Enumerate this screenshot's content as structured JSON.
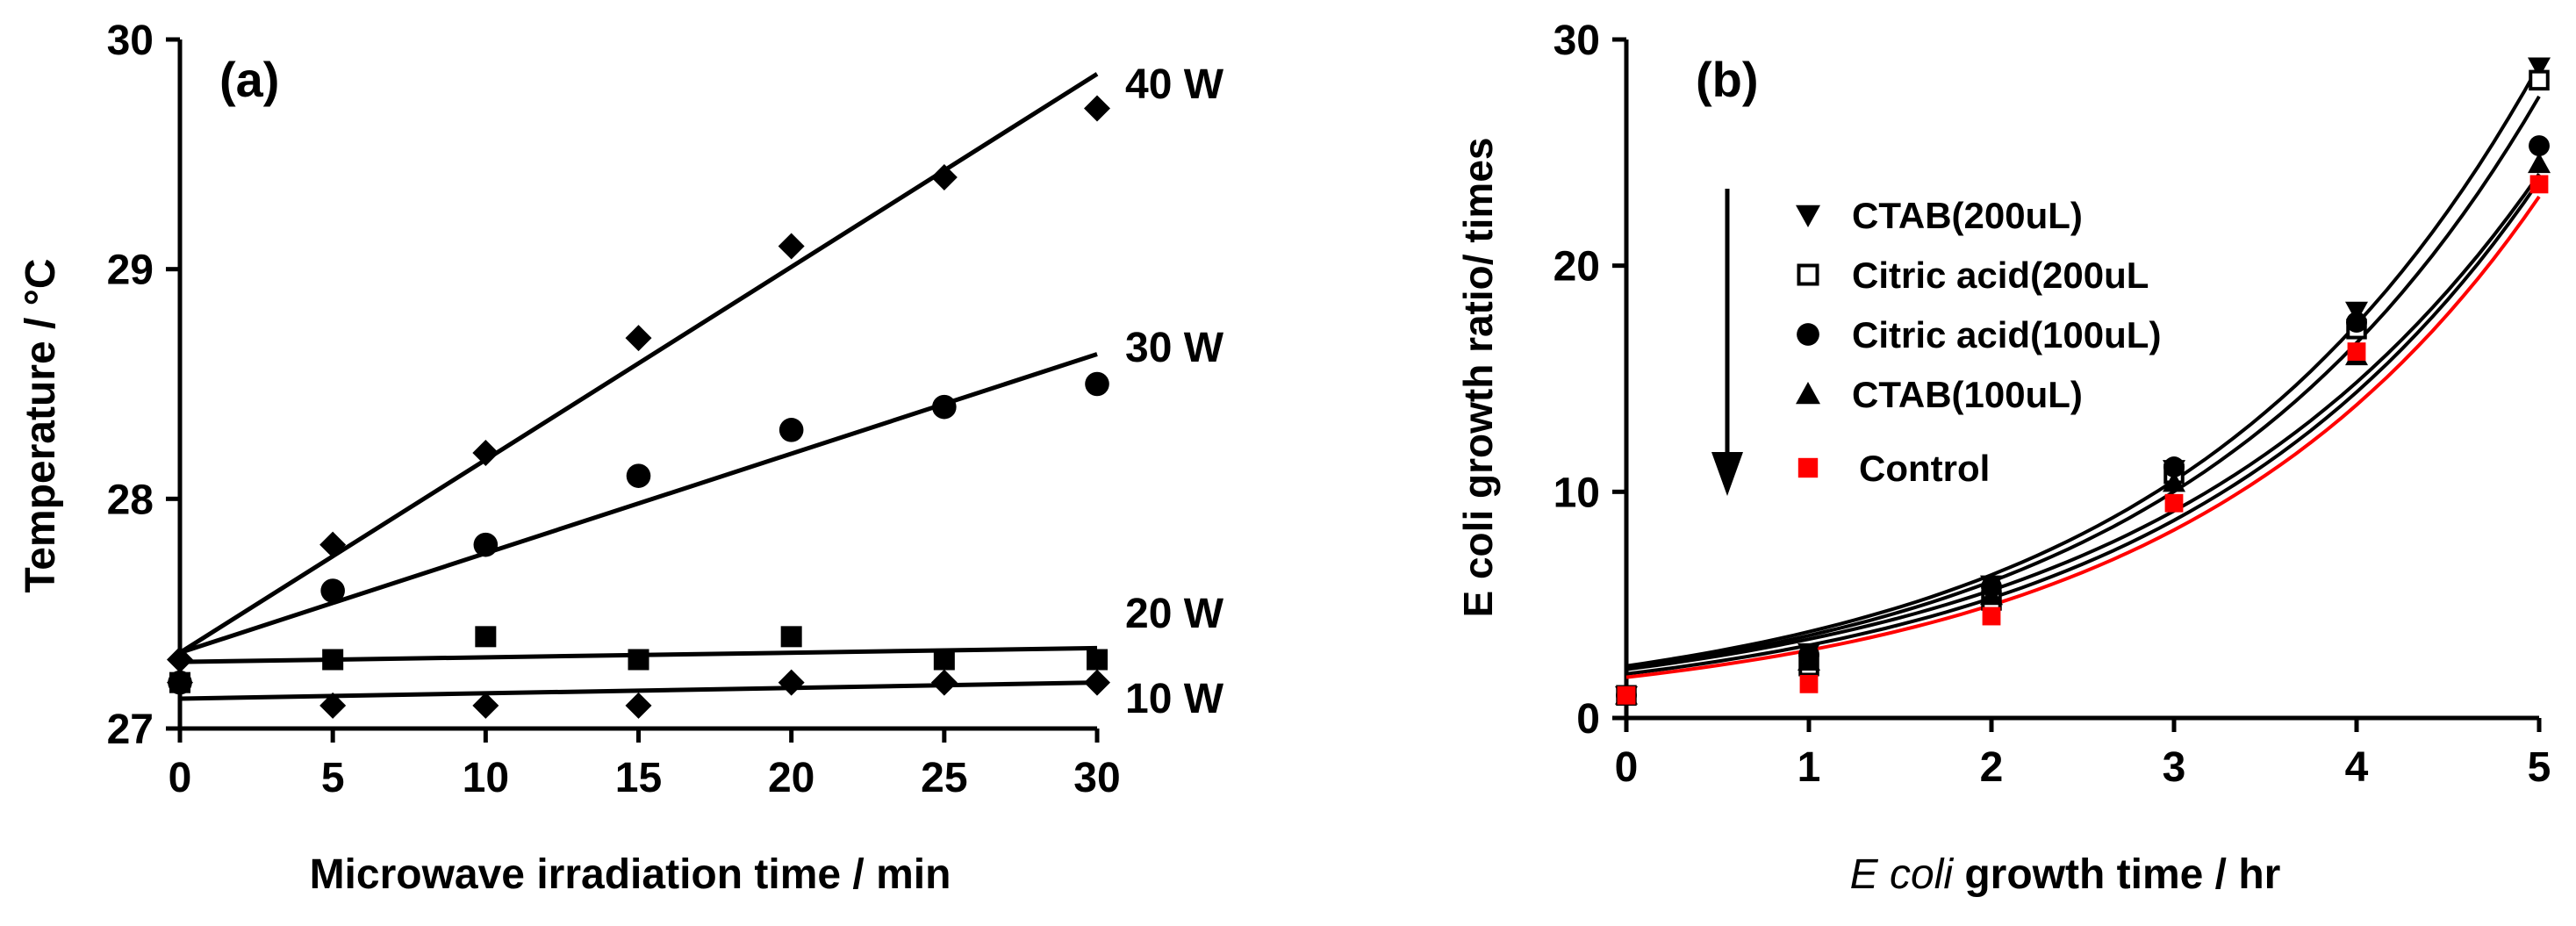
{
  "chart_data": [
    {
      "panel": "(a)",
      "type": "scatter",
      "xlabel": "Microwave irradiation time / min",
      "ylabel": "Temperature / °C",
      "xlim": [
        0,
        30
      ],
      "ylim": [
        27,
        30
      ],
      "xticks": [
        "0",
        "5",
        "10",
        "15",
        "20",
        "25",
        "30"
      ],
      "yticks": [
        "27",
        "28",
        "29",
        "30"
      ],
      "x": [
        0,
        5,
        10,
        15,
        20,
        25,
        30
      ],
      "series": [
        {
          "name": "40 W",
          "marker": "diamond",
          "values": [
            27.3,
            27.8,
            28.2,
            28.7,
            29.1,
            29.4,
            29.7
          ],
          "fit": [
            27.33,
            29.85
          ]
        },
        {
          "name": "30 W",
          "marker": "circle",
          "values": [
            27.2,
            27.6,
            27.8,
            28.1,
            28.3,
            28.4,
            28.5
          ],
          "fit": [
            27.33,
            28.63
          ]
        },
        {
          "name": "20 W",
          "marker": "square",
          "values": [
            27.2,
            27.3,
            27.4,
            27.3,
            27.4,
            27.3,
            27.3
          ],
          "fit": [
            27.29,
            27.35
          ]
        },
        {
          "name": "10 W",
          "marker": "diamond",
          "values": [
            27.2,
            27.1,
            27.1,
            27.1,
            27.2,
            27.2,
            27.2
          ],
          "fit": [
            27.13,
            27.2
          ]
        }
      ]
    },
    {
      "panel": "(b)",
      "type": "scatter",
      "xlabel_italic": "E coli",
      "xlabel_rest": " growth time / hr",
      "ylabel": "E coli growth ratio/ times",
      "xlim": [
        0,
        5
      ],
      "ylim": [
        0,
        30
      ],
      "xticks": [
        "0",
        "1",
        "2",
        "3",
        "4",
        "5"
      ],
      "yticks": [
        "0",
        "10",
        "20",
        "30"
      ],
      "x": [
        0,
        1,
        2,
        3,
        4,
        5
      ],
      "series": [
        {
          "name": "CTAB(200uL)",
          "marker": "triangle-down",
          "color": "#000000",
          "values": [
            1.0,
            2.9,
            5.9,
            11.0,
            18.0,
            28.8
          ],
          "fit": {
            "a": 2.3,
            "b": 0.506
          }
        },
        {
          "name": "Citric acid(200uL",
          "marker": "square-open",
          "color": "#000000",
          "values": [
            1.0,
            2.3,
            5.2,
            10.8,
            17.2,
            28.2
          ],
          "fit": {
            "a": 2.2,
            "b": 0.505
          }
        },
        {
          "name": "Citric acid(100uL)",
          "marker": "circle",
          "color": "#000000",
          "values": [
            1.0,
            2.8,
            5.8,
            11.1,
            17.5,
            25.3
          ],
          "fit": {
            "a": 2.15,
            "b": 0.483
          }
        },
        {
          "name": "CTAB(100uL)",
          "marker": "triangle-up",
          "color": "#000000",
          "values": [
            1.0,
            2.5,
            5.4,
            10.4,
            16.0,
            24.5
          ],
          "fit": {
            "a": 1.95,
            "b": 0.5
          }
        },
        {
          "name": "Control",
          "marker": "square",
          "color": "#ff0000",
          "values": [
            1.0,
            1.5,
            4.5,
            9.5,
            16.2,
            23.6
          ],
          "fit": {
            "a": 1.8,
            "b": 0.51
          }
        }
      ]
    }
  ]
}
